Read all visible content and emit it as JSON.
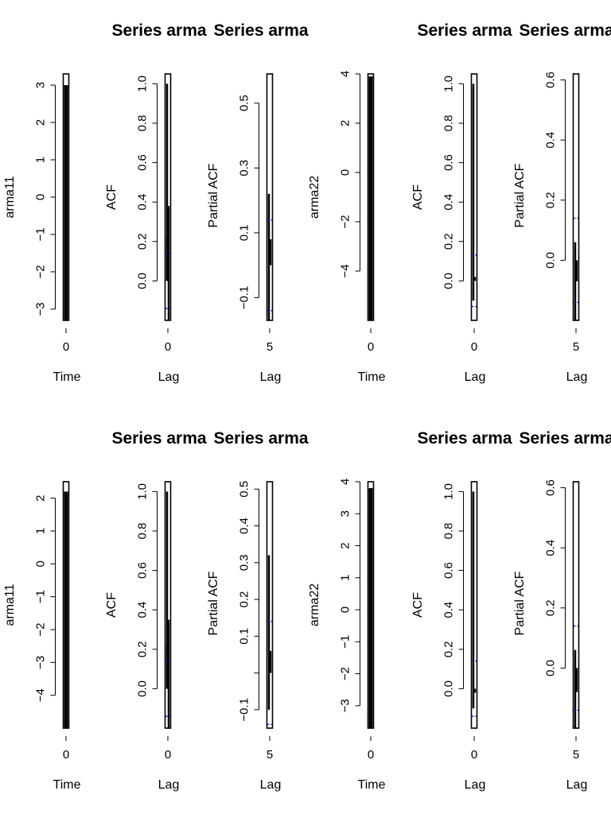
{
  "chart_data": [
    {
      "type": "line",
      "title": "",
      "xlabel": "Time",
      "ylabel": "arma11",
      "xlim": [
        -2,
        2
      ],
      "ylim": [
        -3.3,
        3.3
      ],
      "x_ticks": [
        0
      ],
      "x_ticklabels": [
        "0"
      ],
      "y_ticks": [
        -3,
        -2,
        -1,
        0,
        1,
        2,
        3
      ],
      "y_ticklabels": [
        "-3",
        "-2",
        "-1",
        "0",
        "1",
        "2",
        "3"
      ],
      "series": [
        {
          "x": [
            0,
            0,
            0,
            0
          ],
          "y": [
            -3.3,
            2.8,
            -2.5,
            3.0
          ]
        }
      ]
    },
    {
      "type": "bar",
      "title": "Series arma",
      "xlabel": "Lag",
      "ylabel": "ACF",
      "xlim": [
        -2,
        2
      ],
      "ylim": [
        -0.2,
        1.05
      ],
      "x_ticks": [
        0
      ],
      "x_ticklabels": [
        "0"
      ],
      "y_ticks": [
        0,
        0.2,
        0.4,
        0.6,
        0.8,
        1.0
      ],
      "y_ticklabels": [
        "0.0",
        "0.2",
        "0.4",
        "0.6",
        "0.8",
        "1.0"
      ],
      "values": [
        1.0,
        0.38,
        0.22,
        -0.2
      ],
      "ci": 0.14
    },
    {
      "type": "bar",
      "title": "Series arma",
      "xlabel": "Lag",
      "ylabel": "Partial ACF",
      "xlim": [
        3,
        7
      ],
      "ylim": [
        -0.17,
        0.59
      ],
      "x_ticks": [
        5
      ],
      "x_ticklabels": [
        "5"
      ],
      "y_ticks": [
        -0.1,
        0.1,
        0.3,
        0.5
      ],
      "y_ticklabels": [
        "-0.1",
        "0.1",
        "0.3",
        "0.5"
      ],
      "values": [
        0.22,
        0.08,
        -0.17
      ],
      "ci": 0.14
    },
    {
      "type": "line",
      "title": "",
      "xlabel": "Time",
      "ylabel": "arma22",
      "xlim": [
        -2,
        2
      ],
      "ylim": [
        -6,
        4
      ],
      "x_ticks": [
        0
      ],
      "x_ticklabels": [
        "0"
      ],
      "y_ticks": [
        -4,
        -2,
        0,
        2,
        4
      ],
      "y_ticklabels": [
        "-4",
        "-2",
        "0",
        "2",
        "4"
      ],
      "series": [
        {
          "x": [
            0,
            0,
            0,
            0
          ],
          "y": [
            -6,
            3.9,
            -2.4,
            2.2
          ]
        }
      ]
    },
    {
      "type": "bar",
      "title": "Series arma",
      "xlabel": "Lag",
      "ylabel": "ACF",
      "xlim": [
        -2,
        2
      ],
      "ylim": [
        -0.2,
        1.05
      ],
      "x_ticks": [
        0
      ],
      "x_ticklabels": [
        "0"
      ],
      "y_ticks": [
        0,
        0.2,
        0.4,
        0.6,
        0.8,
        1.0
      ],
      "y_ticklabels": [
        "0.0",
        "0.2",
        "0.4",
        "0.6",
        "0.8",
        "1.0"
      ],
      "values": [
        1.0,
        0.02,
        -0.1
      ],
      "ci": 0.13
    },
    {
      "type": "bar",
      "title": "Series arma",
      "xlabel": "Lag",
      "ylabel": "Partial ACF",
      "xlim": [
        3,
        7
      ],
      "ylim": [
        -0.2,
        0.62
      ],
      "x_ticks": [
        5
      ],
      "x_ticklabels": [
        "5"
      ],
      "y_ticks": [
        0,
        0.2,
        0.4,
        0.6
      ],
      "y_ticklabels": [
        "0.0",
        "0.2",
        "0.4",
        "0.6"
      ],
      "values": [
        0.06,
        -0.07,
        -0.2
      ],
      "ci": 0.14
    },
    {
      "type": "line",
      "title": "",
      "xlabel": "Time",
      "ylabel": "arma11",
      "xlim": [
        -2,
        2
      ],
      "ylim": [
        -5,
        2.5
      ],
      "x_ticks": [
        0
      ],
      "x_ticklabels": [
        "0"
      ],
      "y_ticks": [
        -4,
        -3,
        -2,
        -1,
        0,
        1,
        2
      ],
      "y_ticklabels": [
        "-4",
        "-3",
        "-2",
        "-1",
        "0",
        "1",
        "2"
      ],
      "series": [
        {
          "x": [
            0,
            0,
            0,
            0
          ],
          "y": [
            -5,
            2.2,
            -1.9,
            2.1
          ]
        }
      ]
    },
    {
      "type": "bar",
      "title": "Series arma",
      "xlabel": "Lag",
      "ylabel": "ACF",
      "xlim": [
        -2,
        2
      ],
      "ylim": [
        -0.2,
        1.05
      ],
      "x_ticks": [
        0
      ],
      "x_ticklabels": [
        "0"
      ],
      "y_ticks": [
        0,
        0.2,
        0.4,
        0.6,
        0.8,
        1.0
      ],
      "y_ticklabels": [
        "0.0",
        "0.2",
        "0.4",
        "0.6",
        "0.8",
        "1.0"
      ],
      "values": [
        1.0,
        0.35,
        0.22,
        -0.2
      ],
      "ci": 0.14
    },
    {
      "type": "bar",
      "title": "Series arma",
      "xlabel": "Lag",
      "ylabel": "Partial ACF",
      "xlim": [
        3,
        7
      ],
      "ylim": [
        -0.15,
        0.52
      ],
      "x_ticks": [
        5
      ],
      "x_ticklabels": [
        "5"
      ],
      "y_ticks": [
        -0.1,
        0,
        0.1,
        0.2,
        0.3,
        0.4,
        0.5
      ],
      "y_ticklabels": [
        "-0.1",
        "",
        "0.1",
        "0.2",
        "0.3",
        "0.4",
        "0.5"
      ],
      "values": [
        0.32,
        0.06,
        -0.1
      ],
      "ci": 0.14
    },
    {
      "type": "line",
      "title": "",
      "xlabel": "Time",
      "ylabel": "arma22",
      "xlim": [
        -2,
        2
      ],
      "ylim": [
        -3.7,
        4
      ],
      "x_ticks": [
        0
      ],
      "x_ticklabels": [
        "0"
      ],
      "y_ticks": [
        -3,
        -2,
        -1,
        0,
        1,
        2,
        3,
        4
      ],
      "y_ticklabels": [
        "-3",
        "-2",
        "-1",
        "0",
        "1",
        "2",
        "3",
        "4"
      ],
      "series": [
        {
          "x": [
            0,
            0,
            0,
            0
          ],
          "y": [
            -3.7,
            3.8,
            -3.1,
            2.8
          ]
        }
      ]
    },
    {
      "type": "bar",
      "title": "Series arma",
      "xlabel": "Lag",
      "ylabel": "ACF",
      "xlim": [
        -2,
        2
      ],
      "ylim": [
        -0.2,
        1.05
      ],
      "x_ticks": [
        0
      ],
      "x_ticklabels": [
        "0"
      ],
      "y_ticks": [
        0,
        0.2,
        0.4,
        0.6,
        0.8,
        1.0
      ],
      "y_ticklabels": [
        "0.0",
        "0.2",
        "0.4",
        "0.6",
        "0.8",
        "1.0"
      ],
      "values": [
        1.0,
        -0.02,
        -0.1
      ],
      "ci": 0.14
    },
    {
      "type": "bar",
      "title": "Series arma",
      "xlabel": "Lag",
      "ylabel": "Partial ACF",
      "xlim": [
        3,
        7
      ],
      "ylim": [
        -0.2,
        0.62
      ],
      "x_ticks": [
        5
      ],
      "x_ticklabels": [
        "5"
      ],
      "y_ticks": [
        0,
        0.2,
        0.4,
        0.6
      ],
      "y_ticklabels": [
        "0.0",
        "0.2",
        "0.4",
        "0.6"
      ],
      "values": [
        0.06,
        -0.08,
        -0.2
      ],
      "ci": 0.14
    }
  ]
}
